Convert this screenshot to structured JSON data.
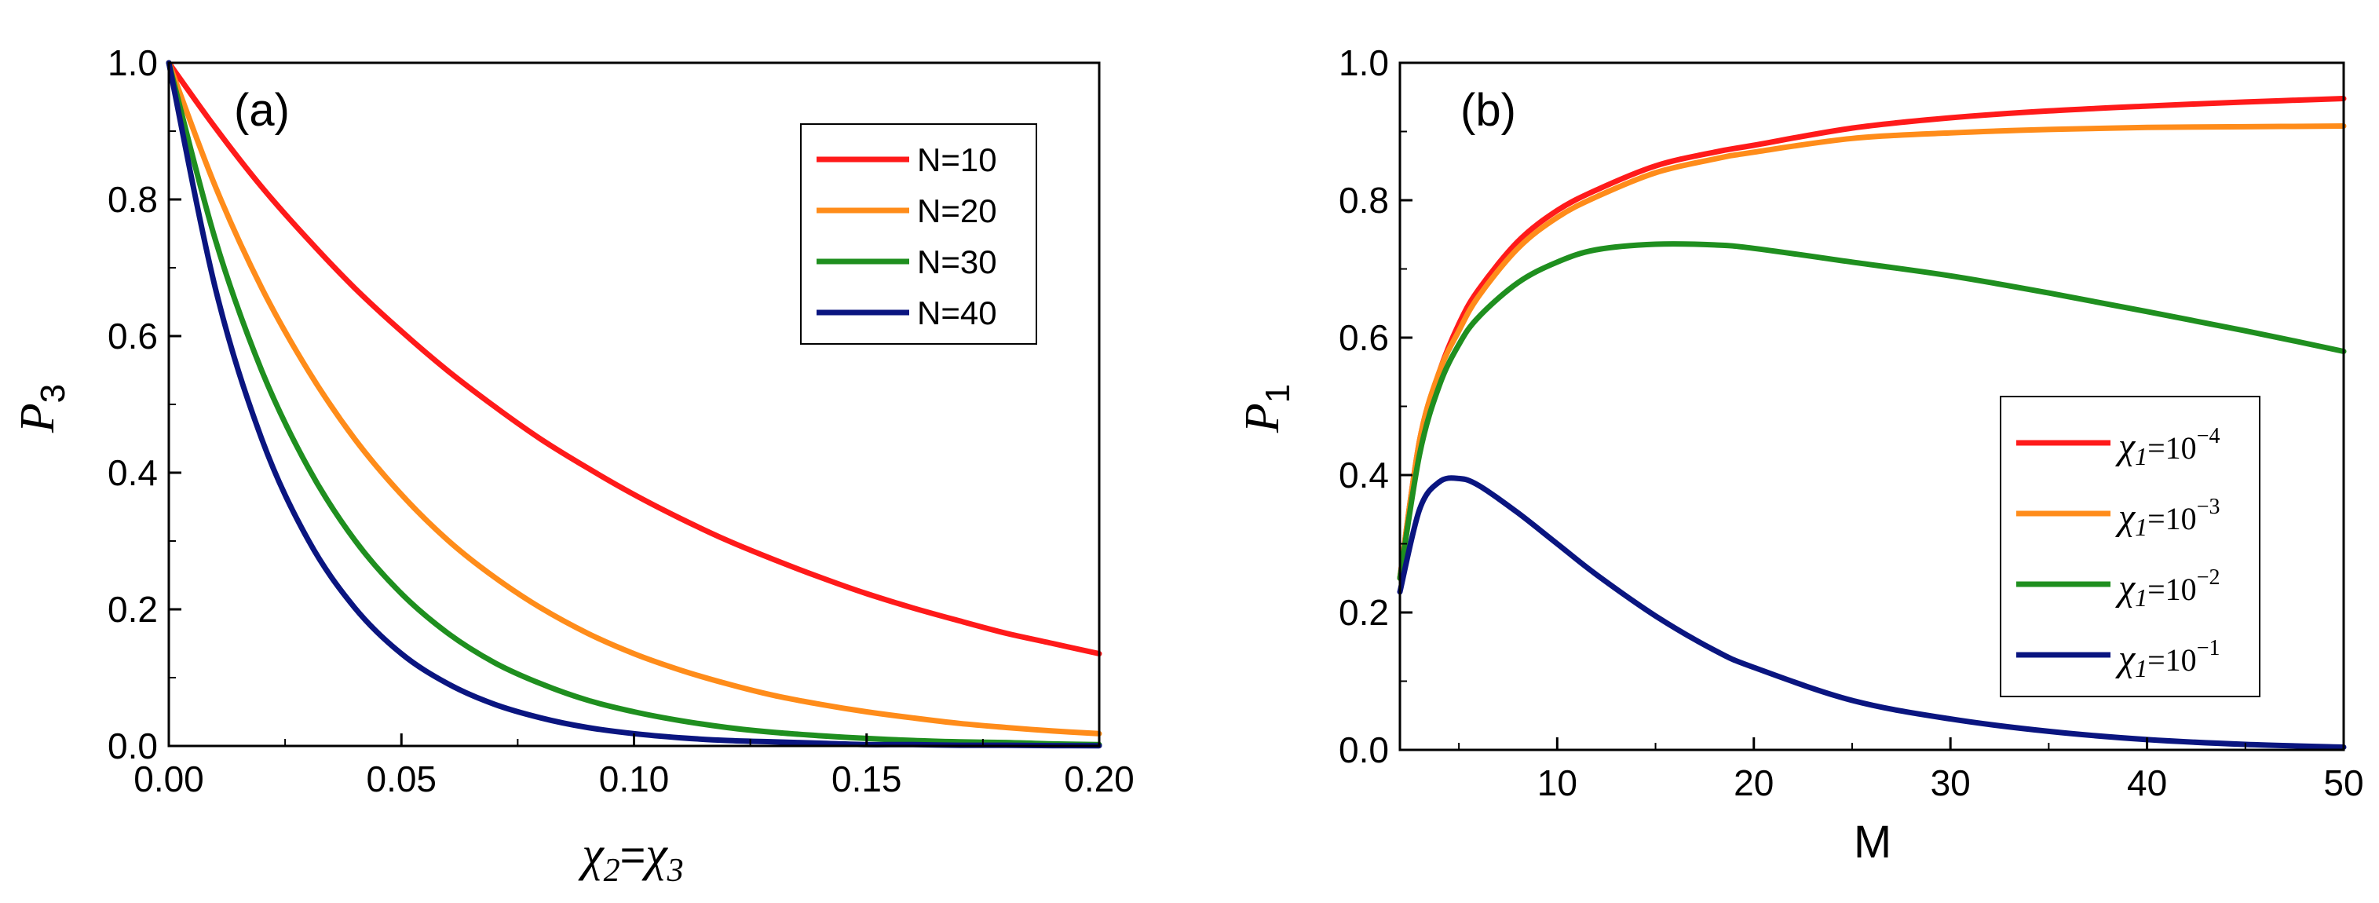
{
  "chart_data": [
    {
      "type": "line",
      "panel_label": "(a)",
      "xlabel": "χ2=χ3",
      "xlabel_parts": {
        "chi_a": "χ",
        "sub_a": "2",
        "eq": "=",
        "chi_b": "χ",
        "sub_b": "3"
      },
      "ylabel": "P3",
      "ylabel_parts": {
        "letter": "P",
        "sub": "3"
      },
      "xlim": [
        0,
        0.2
      ],
      "ylim": [
        0,
        1.0
      ],
      "xticks": [
        "0.00",
        "0.05",
        "0.10",
        "0.15",
        "0.20"
      ],
      "xtick_values": [
        0,
        0.05,
        0.1,
        0.15,
        0.2
      ],
      "yticks": [
        "0.0",
        "0.2",
        "0.4",
        "0.6",
        "0.8",
        "1.0"
      ],
      "ytick_values": [
        0,
        0.2,
        0.4,
        0.6,
        0.8,
        1.0
      ],
      "legend_position": "top-right",
      "x": [
        0,
        0.01,
        0.02,
        0.03,
        0.04,
        0.05,
        0.06,
        0.07,
        0.08,
        0.09,
        0.1,
        0.11,
        0.12,
        0.13,
        0.14,
        0.15,
        0.16,
        0.17,
        0.18,
        0.19,
        0.2
      ],
      "series": [
        {
          "name": "N=10",
          "color": "#ff1a1a",
          "legend": {
            "text": "N=10"
          },
          "values": [
            1.0,
            0.905,
            0.818,
            0.741,
            0.67,
            0.607,
            0.549,
            0.497,
            0.449,
            0.407,
            0.368,
            0.333,
            0.301,
            0.273,
            0.247,
            0.223,
            0.202,
            0.183,
            0.165,
            0.15,
            0.135
          ]
        },
        {
          "name": "N=20",
          "color": "#ff8c1a",
          "legend": {
            "text": "N=20"
          },
          "values": [
            1.0,
            0.819,
            0.67,
            0.549,
            0.449,
            0.368,
            0.301,
            0.247,
            0.202,
            0.165,
            0.135,
            0.111,
            0.091,
            0.074,
            0.061,
            0.05,
            0.041,
            0.033,
            0.027,
            0.022,
            0.018
          ]
        },
        {
          "name": "N=30",
          "color": "#1f8f1f",
          "legend": {
            "text": "N=30"
          },
          "values": [
            1.0,
            0.741,
            0.549,
            0.407,
            0.301,
            0.223,
            0.165,
            0.122,
            0.091,
            0.067,
            0.05,
            0.037,
            0.027,
            0.02,
            0.015,
            0.011,
            0.008,
            0.006,
            0.005,
            0.003,
            0.002
          ]
        },
        {
          "name": "N=40",
          "color": "#0a1580",
          "legend": {
            "text": "N=40"
          },
          "values": [
            1.0,
            0.67,
            0.449,
            0.301,
            0.202,
            0.135,
            0.091,
            0.061,
            0.041,
            0.027,
            0.018,
            0.012,
            0.008,
            0.006,
            0.004,
            0.002,
            0.002,
            0.001,
            0.001,
            0.0005,
            0.0003
          ]
        }
      ]
    },
    {
      "type": "line",
      "panel_label": "(b)",
      "xlabel": "M",
      "ylabel": "P1",
      "ylabel_parts": {
        "letter": "P",
        "sub": "1"
      },
      "xlim": [
        2,
        50
      ],
      "ylim": [
        0,
        1.0
      ],
      "xticks": [
        "10",
        "20",
        "30",
        "40",
        "50"
      ],
      "xtick_values": [
        10,
        20,
        30,
        40,
        50
      ],
      "yticks": [
        "0.0",
        "0.2",
        "0.4",
        "0.6",
        "0.8",
        "1.0"
      ],
      "ytick_values": [
        0,
        0.2,
        0.4,
        0.6,
        0.8,
        1.0
      ],
      "legend_position": "middle-right",
      "x": [
        2,
        3,
        4,
        5,
        6,
        8,
        10,
        12,
        15,
        18,
        20,
        25,
        30,
        35,
        40,
        45,
        50
      ],
      "series": [
        {
          "name": "χ1=10^-4",
          "color": "#ff1a1a",
          "legend": {
            "base": "χ",
            "sub": "1",
            "mid": "=10",
            "exp": "−4"
          },
          "values": [
            0.25,
            0.45,
            0.55,
            0.62,
            0.67,
            0.74,
            0.785,
            0.815,
            0.85,
            0.87,
            0.88,
            0.905,
            0.92,
            0.93,
            0.937,
            0.943,
            0.948
          ]
        },
        {
          "name": "χ1=10^-3",
          "color": "#ff8c1a",
          "legend": {
            "base": "χ",
            "sub": "1",
            "mid": "=10",
            "exp": "−3"
          },
          "values": [
            0.25,
            0.45,
            0.55,
            0.61,
            0.66,
            0.73,
            0.775,
            0.805,
            0.84,
            0.86,
            0.87,
            0.89,
            0.898,
            0.903,
            0.906,
            0.907,
            0.908
          ]
        },
        {
          "name": "χ1=10^-2",
          "color": "#1f8f1f",
          "legend": {
            "base": "χ",
            "sub": "1",
            "mid": "=10",
            "exp": "−2"
          },
          "values": [
            0.25,
            0.43,
            0.53,
            0.59,
            0.63,
            0.68,
            0.71,
            0.728,
            0.736,
            0.735,
            0.73,
            0.71,
            0.69,
            0.665,
            0.638,
            0.61,
            0.58
          ]
        },
        {
          "name": "χ1=10^-1",
          "color": "#0a1580",
          "legend": {
            "base": "χ",
            "sub": "1",
            "mid": "=10",
            "exp": "−1"
          },
          "values": [
            0.23,
            0.35,
            0.39,
            0.395,
            0.385,
            0.345,
            0.3,
            0.255,
            0.195,
            0.145,
            0.12,
            0.072,
            0.045,
            0.027,
            0.015,
            0.008,
            0.004
          ]
        }
      ]
    }
  ]
}
